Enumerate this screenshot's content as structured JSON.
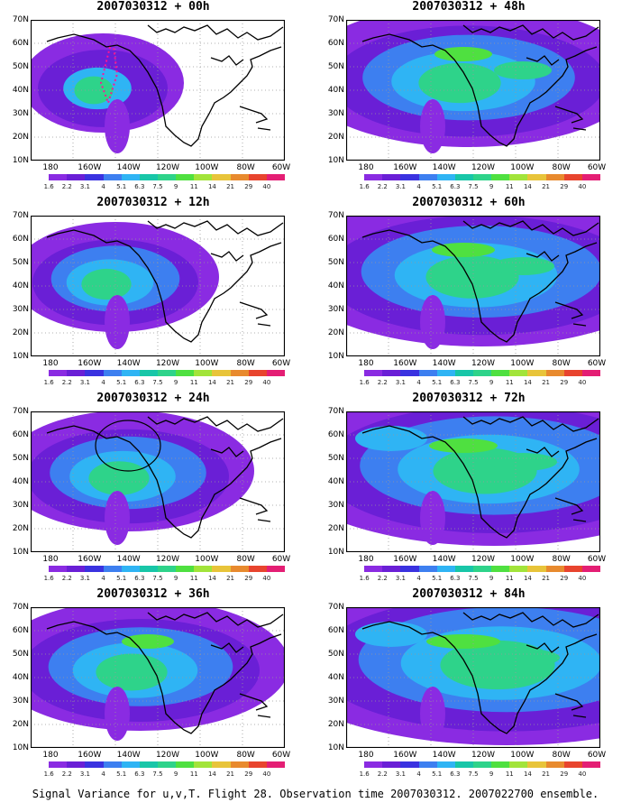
{
  "panels": [
    {
      "title": "2007030312 + 00h",
      "stage": 0
    },
    {
      "title": "2007030312 + 48h",
      "stage": 4
    },
    {
      "title": "2007030312 + 12h",
      "stage": 1
    },
    {
      "title": "2007030312 + 60h",
      "stage": 5
    },
    {
      "title": "2007030312 + 24h",
      "stage": 2
    },
    {
      "title": "2007030312 + 72h",
      "stage": 6
    },
    {
      "title": "2007030312 + 36h",
      "stage": 3
    },
    {
      "title": "2007030312 + 84h",
      "stage": 7
    }
  ],
  "y_labels": [
    "70N",
    "60N",
    "50N",
    "40N",
    "30N",
    "20N",
    "10N"
  ],
  "x_labels": [
    "180",
    "160W",
    "140W",
    "120W",
    "100W",
    "80W",
    "60W"
  ],
  "colorbar": {
    "labels": [
      "1.6",
      "2.2",
      "3.1",
      "4",
      "5.1",
      "6.3",
      "7.5",
      "9",
      "11",
      "14",
      "21",
      "29",
      "40"
    ],
    "colors": [
      "#ffffff",
      "#8a2be2",
      "#6a1fd6",
      "#3a32e0",
      "#3d7ff0",
      "#2fb4f4",
      "#18c6a8",
      "#2ed38a",
      "#4fe040",
      "#a2e43a",
      "#e8c43a",
      "#e88a2e",
      "#e8442e",
      "#e41e74"
    ]
  },
  "caption": "Signal Variance for u,v,T. Flight 28. Observation time 2007030312. 2007022700 ensemble."
}
